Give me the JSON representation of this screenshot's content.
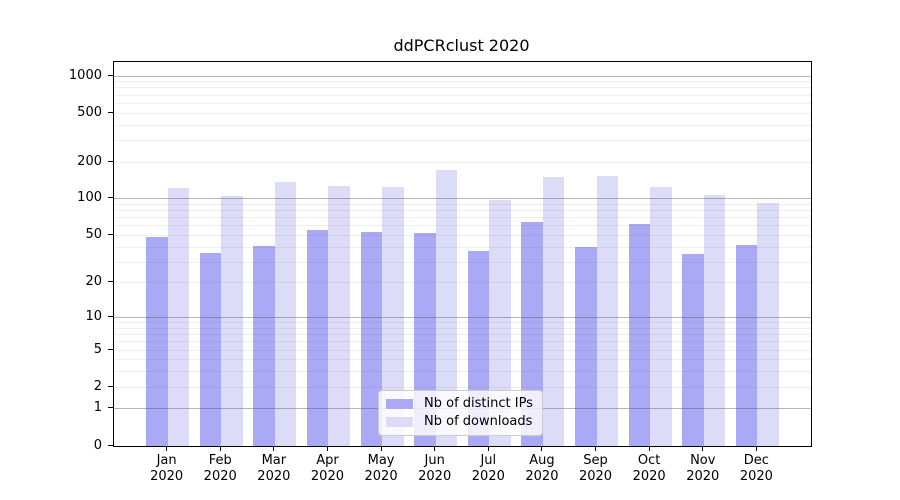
{
  "title": "ddPCRclust 2020",
  "chart_data": {
    "type": "bar",
    "title": "ddPCRclust 2020",
    "categories": [
      "Jan 2020",
      "Feb 2020",
      "Mar 2020",
      "Apr 2020",
      "May 2020",
      "Jun 2020",
      "Jul 2020",
      "Aug 2020",
      "Sep 2020",
      "Oct 2020",
      "Nov 2020",
      "Dec 2020"
    ],
    "series": [
      {
        "name": "Nb of distinct IPs",
        "color": "#a9a9f5",
        "values": [
          49,
          36,
          41,
          55,
          53,
          52,
          37,
          64,
          40,
          62,
          35,
          42
        ]
      },
      {
        "name": "Nb of downloads",
        "color": "#dcdcf9",
        "values": [
          123,
          106,
          137,
          128,
          125,
          171,
          97,
          152,
          155,
          125,
          108,
          92
        ]
      }
    ],
    "xlabel": "",
    "ylabel": "",
    "yscale": "log1p",
    "yticks": [
      1000,
      500,
      200,
      100,
      50,
      20,
      10,
      5,
      2,
      1,
      0
    ],
    "ylim": [
      0,
      1300
    ],
    "grid": true,
    "grid_major_values": [
      1,
      10,
      100,
      1000
    ],
    "grid_minor_values": [
      2,
      3,
      4,
      5,
      6,
      7,
      8,
      9,
      20,
      30,
      40,
      50,
      60,
      70,
      80,
      90,
      200,
      300,
      400,
      500,
      600,
      700,
      800,
      900
    ],
    "legend_position": "lower center"
  },
  "colors": {
    "distinct_ips": "#a9a9f5",
    "downloads": "#dcdcf9",
    "grid_major": "#b8b8b8",
    "grid_minor": "#ececec",
    "axis": "#000000"
  }
}
